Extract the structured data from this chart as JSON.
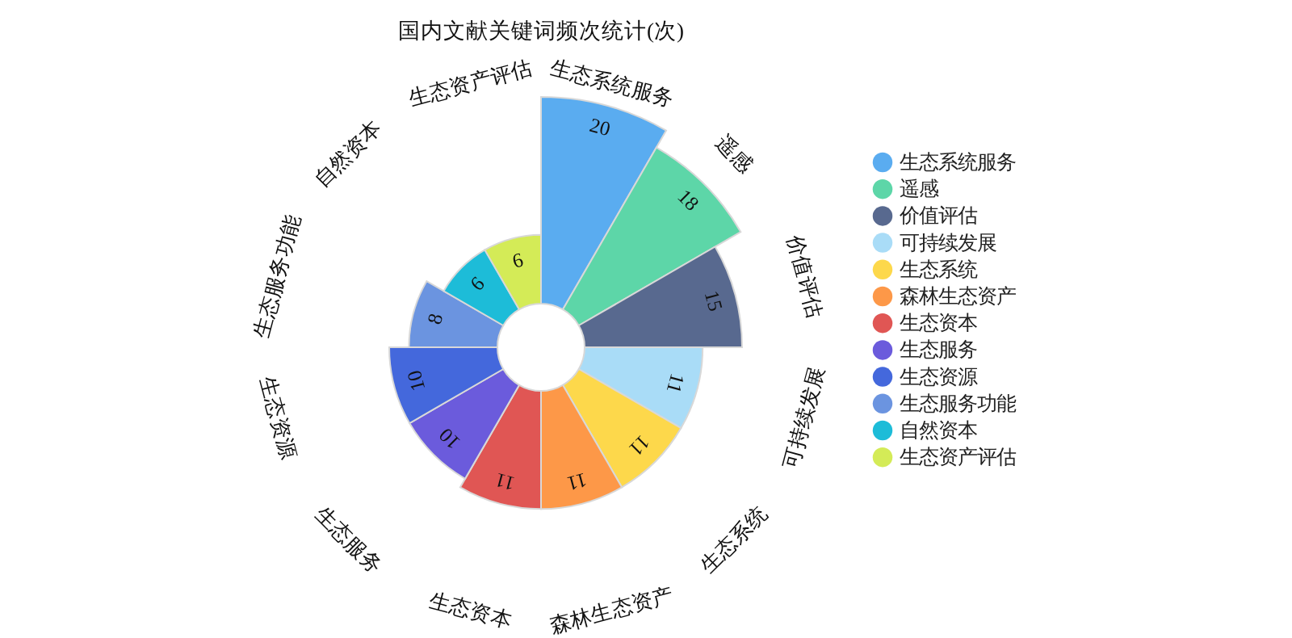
{
  "chart_data": {
    "type": "other",
    "title": "国内文献关键词频次统计(次)",
    "categories": [
      "生态系统服务",
      "遥感",
      "价值评估",
      "可持续发展",
      "生态系统",
      "森林生态资产",
      "生态资本",
      "生态服务",
      "生态资源",
      "生态服务功能",
      "自然资本",
      "生态资产评估"
    ],
    "values": [
      20,
      18,
      15,
      11,
      11,
      11,
      11,
      10,
      10,
      8,
      6,
      6
    ],
    "colors": [
      "#5aacf0",
      "#5dd6a8",
      "#58698f",
      "#a9dcf7",
      "#fdd84b",
      "#fd9848",
      "#e05654",
      "#6b5bdc",
      "#4468dc",
      "#6b94e0",
      "#1dbcd8",
      "#d4eb57"
    ],
    "data_labels": true
  }
}
